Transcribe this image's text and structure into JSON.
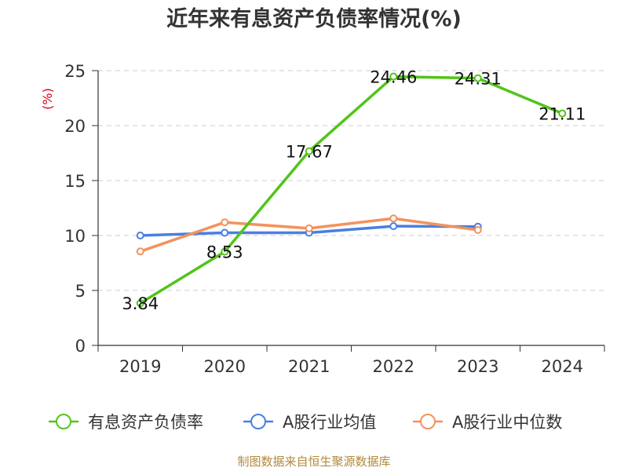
{
  "title": "近年来有息资产负债率情况(%)",
  "source_note": "制图数据来自恒生聚源数据库",
  "colors": {
    "series": [
      "#52c41a",
      "#4a7fe0",
      "#f4925c"
    ],
    "grid": "#cccccc",
    "axis": "#333333",
    "unit_label": "#d9001b",
    "source_note": "#b08a3c"
  },
  "chart_data": {
    "type": "line",
    "title": "近年来有息资产负债率情况(%)",
    "ylabel": "(%)",
    "xlabel": "",
    "ylim": [
      0,
      25
    ],
    "y_ticks": [
      0,
      5,
      10,
      15,
      20,
      25
    ],
    "grid": true,
    "legend_position": "bottom",
    "categories": [
      "2019",
      "2020",
      "2021",
      "2022",
      "2023",
      "2024"
    ],
    "series": [
      {
        "name": "有息资产负债率",
        "values": [
          3.84,
          8.53,
          17.67,
          24.46,
          24.31,
          21.11
        ],
        "data_labels": [
          "3.84",
          "8.53",
          "17.67",
          "24.46",
          "24.31",
          "21.11"
        ]
      },
      {
        "name": "A股行业均值",
        "values": [
          10.0,
          10.25,
          10.25,
          10.85,
          10.8,
          null
        ]
      },
      {
        "name": "A股行业中位数",
        "values": [
          8.55,
          11.2,
          10.65,
          11.55,
          10.5,
          null
        ]
      }
    ]
  }
}
